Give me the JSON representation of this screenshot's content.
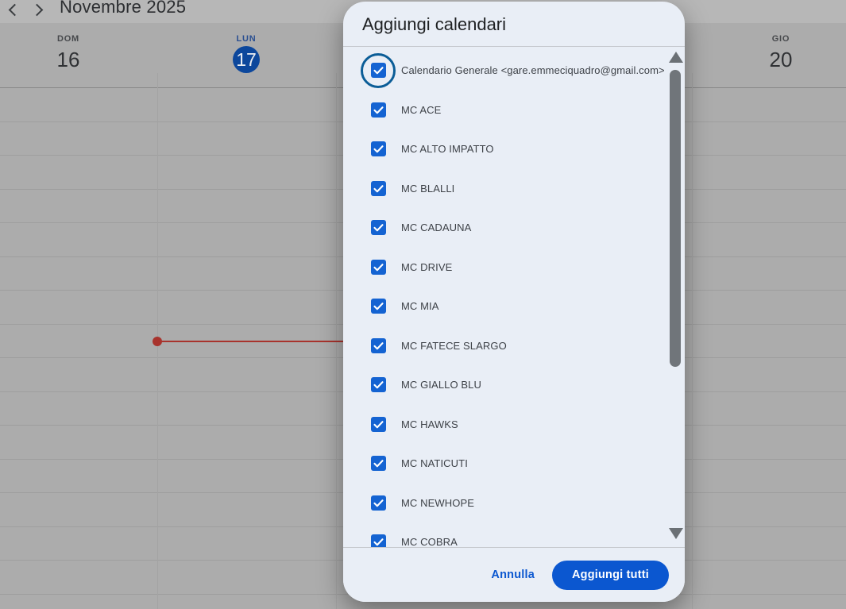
{
  "colors": {
    "accent": "#0b57d0",
    "checkbox-blue": "#1463d2",
    "focus-ring": "#0b5d97",
    "today-blue": "#0c479c",
    "now-red": "#a8332d"
  },
  "toolbar": {
    "title": "Novembre 2025"
  },
  "days": [
    {
      "abbr": "DOM",
      "num": "16",
      "today": false
    },
    {
      "abbr": "LUN",
      "num": "17",
      "today": true
    },
    {
      "abbr": "GIO",
      "num": "20",
      "today": false
    }
  ],
  "dialog": {
    "title": "Aggiungi calendari",
    "items": [
      {
        "label": "Calendario Generale <gare.emmeciquadro@gmail.com>",
        "checked": true,
        "focused": true
      },
      {
        "label": "MC ACE",
        "checked": true,
        "focused": false
      },
      {
        "label": "MC ALTO IMPATTO",
        "checked": true,
        "focused": false
      },
      {
        "label": "MC BLALLI",
        "checked": true,
        "focused": false
      },
      {
        "label": "MC CADAUNA",
        "checked": true,
        "focused": false
      },
      {
        "label": "MC DRIVE",
        "checked": true,
        "focused": false
      },
      {
        "label": "MC MIA",
        "checked": true,
        "focused": false
      },
      {
        "label": "MC FATECE SLARGO",
        "checked": true,
        "focused": false
      },
      {
        "label": "MC GIALLO BLU",
        "checked": true,
        "focused": false
      },
      {
        "label": "MC HAWKS",
        "checked": true,
        "focused": false
      },
      {
        "label": "MC NATICUTI",
        "checked": true,
        "focused": false
      },
      {
        "label": "MC NEWHOPE",
        "checked": true,
        "focused": false
      },
      {
        "label": "MC COBRA",
        "checked": true,
        "focused": false
      }
    ],
    "cancel_label": "Annulla",
    "confirm_label": "Aggiungi tutti"
  }
}
